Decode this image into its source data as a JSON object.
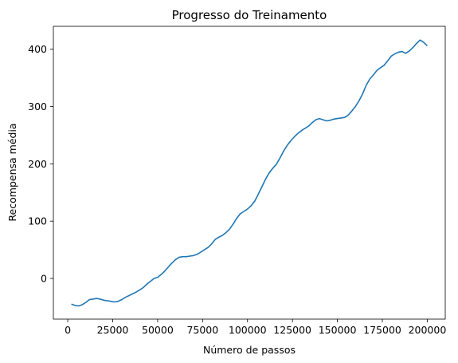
{
  "chart_data": {
    "type": "line",
    "title": "Progresso do Treinamento",
    "xlabel": "Número de passos",
    "ylabel": "Recompensa média",
    "xlim": [
      -8000,
      210000
    ],
    "ylim": [
      -71,
      440
    ],
    "x_ticks": [
      0,
      25000,
      50000,
      75000,
      100000,
      125000,
      150000,
      175000,
      200000
    ],
    "y_ticks": [
      0,
      100,
      200,
      300,
      400
    ],
    "grid": false,
    "series": [
      {
        "color": "#1f77b4",
        "x": [
          2000,
          4000,
          6000,
          8000,
          10000,
          12000,
          14000,
          16000,
          18000,
          20000,
          22000,
          24000,
          26000,
          28000,
          30000,
          32000,
          34000,
          36000,
          38000,
          40000,
          42000,
          44000,
          46000,
          48000,
          50000,
          52000,
          54000,
          56000,
          58000,
          60000,
          62000,
          64000,
          66000,
          68000,
          70000,
          72000,
          74000,
          76000,
          78000,
          80000,
          82000,
          84000,
          86000,
          88000,
          90000,
          92000,
          94000,
          96000,
          98000,
          100000,
          102000,
          104000,
          106000,
          108000,
          110000,
          112000,
          114000,
          116000,
          118000,
          120000,
          122000,
          124000,
          126000,
          128000,
          130000,
          132000,
          134000,
          136000,
          138000,
          140000,
          142000,
          144000,
          146000,
          148000,
          150000,
          152000,
          154000,
          156000,
          158000,
          160000,
          162000,
          164000,
          166000,
          168000,
          170000,
          172000,
          174000,
          176000,
          178000,
          180000,
          182000,
          184000,
          186000,
          188000,
          190000,
          192000,
          194000,
          196000,
          198000,
          200000
        ],
        "values": [
          -45,
          -47,
          -48,
          -46,
          -42,
          -37,
          -36,
          -35,
          -36,
          -38,
          -39,
          -40,
          -41,
          -40,
          -37,
          -33,
          -30,
          -27,
          -24,
          -20,
          -16,
          -10,
          -5,
          0,
          2,
          7,
          13,
          20,
          27,
          33,
          37,
          38,
          38,
          39,
          40,
          42,
          46,
          50,
          54,
          60,
          68,
          72,
          75,
          80,
          86,
          95,
          105,
          113,
          117,
          121,
          127,
          135,
          147,
          160,
          173,
          184,
          192,
          199,
          210,
          222,
          232,
          240,
          247,
          253,
          258,
          262,
          266,
          272,
          277,
          279,
          277,
          275,
          276,
          278,
          279,
          280,
          281,
          285,
          292,
          300,
          310,
          322,
          337,
          348,
          355,
          363,
          368,
          372,
          380,
          388,
          392,
          395,
          396,
          393,
          397,
          403,
          410,
          416,
          412,
          406
        ]
      }
    ]
  }
}
